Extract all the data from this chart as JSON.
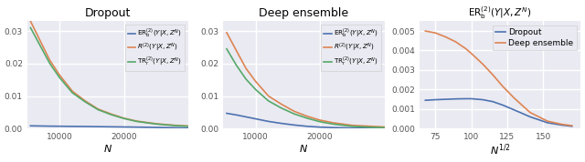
{
  "title1": "Dropout",
  "title2": "Deep ensemble",
  "title3": "$\\mathrm{ER}_\\mathrm{b}^{(2)}(Y|X, Z^N)$",
  "xlabel12": "$N$",
  "xlabel3": "$N^{1/2}$",
  "legend1": [
    "$\\mathrm{ER}_\\mathrm{b}^{(2)}(Y|X, Z^N)$",
    "$R^{(2)}(Y|X, Z^N)$",
    "$\\mathrm{TR}_\\mathrm{r}^{(2)}(Y|X, Z^N)$"
  ],
  "legend2": [
    "$\\mathrm{ER}_\\mathrm{b}^{(2)}(Y|X, Z^N)$",
    "$R^{(2)}(Y|X, Z^N)$",
    "$\\mathrm{TR}_\\mathrm{r}^{(2)}(Y|X, Z^N)$"
  ],
  "legend3": [
    "Dropout",
    "Deep ensemble"
  ],
  "colors_12": [
    "#4c72b0",
    "#dd8452",
    "#55a868"
  ],
  "colors_3": [
    "#4c72b0",
    "#dd8452"
  ],
  "xlim12": [
    5000,
    30000
  ],
  "xlim3": [
    64,
    176
  ],
  "ylim1": [
    0.0,
    0.033
  ],
  "ylim2": [
    0.0,
    0.033
  ],
  "ylim3": [
    0.0,
    0.0055
  ],
  "yticks1": [
    0.0,
    0.01,
    0.02,
    0.03
  ],
  "yticks2": [
    0.0,
    0.01,
    0.02,
    0.03
  ],
  "yticks3": [
    0.0,
    0.001,
    0.002,
    0.003,
    0.004,
    0.005
  ],
  "xticks12": [
    10000,
    20000
  ],
  "xticks3": [
    75,
    100,
    125,
    150
  ],
  "N_vals": [
    5500,
    7000,
    8500,
    10000,
    12000,
    14000,
    16000,
    18000,
    20000,
    22000,
    25000,
    28000,
    30000
  ],
  "dropout_ERb": [
    0.00085,
    0.0008,
    0.00075,
    0.00072,
    0.00068,
    0.00065,
    0.0006,
    0.00055,
    0.0005,
    0.00045,
    0.00035,
    0.00025,
    0.0002
  ],
  "dropout_R": [
    0.033,
    0.027,
    0.021,
    0.0165,
    0.0115,
    0.0085,
    0.006,
    0.0045,
    0.0032,
    0.0023,
    0.0015,
    0.001,
    0.0008
  ],
  "dropout_TR": [
    0.031,
    0.0255,
    0.02,
    0.0157,
    0.011,
    0.0082,
    0.0058,
    0.0043,
    0.0031,
    0.0022,
    0.0014,
    0.0009,
    0.0007
  ],
  "ensemble_ERb": [
    0.0047,
    0.0042,
    0.0036,
    0.003,
    0.0022,
    0.0016,
    0.0011,
    0.0007,
    0.00045,
    0.0003,
    0.00018,
    0.00012,
    0.0001
  ],
  "ensemble_R": [
    0.0295,
    0.024,
    0.0185,
    0.0145,
    0.01,
    0.0075,
    0.0053,
    0.0038,
    0.0026,
    0.0018,
    0.001,
    0.0007,
    0.0005
  ],
  "ensemble_TR": [
    0.0245,
    0.0195,
    0.0152,
    0.012,
    0.0085,
    0.0063,
    0.0045,
    0.0032,
    0.0021,
    0.0014,
    0.0007,
    0.0004,
    0.0003
  ],
  "N_sqrt": [
    68,
    75,
    82,
    89,
    96,
    100,
    108,
    115,
    122,
    130,
    141,
    153,
    163,
    170
  ],
  "dropout_ERb3": [
    0.00145,
    0.00148,
    0.0015,
    0.00152,
    0.00153,
    0.00153,
    0.00148,
    0.00138,
    0.0012,
    0.00095,
    0.0006,
    0.0003,
    0.00018,
    0.00012
  ],
  "ensemble_ERb3": [
    0.005,
    0.0049,
    0.0047,
    0.00445,
    0.0041,
    0.00385,
    0.0033,
    0.00275,
    0.00215,
    0.00155,
    0.00082,
    0.00038,
    0.00022,
    0.00015
  ],
  "bg_color": "#eaeaf2",
  "grid_color": "white"
}
